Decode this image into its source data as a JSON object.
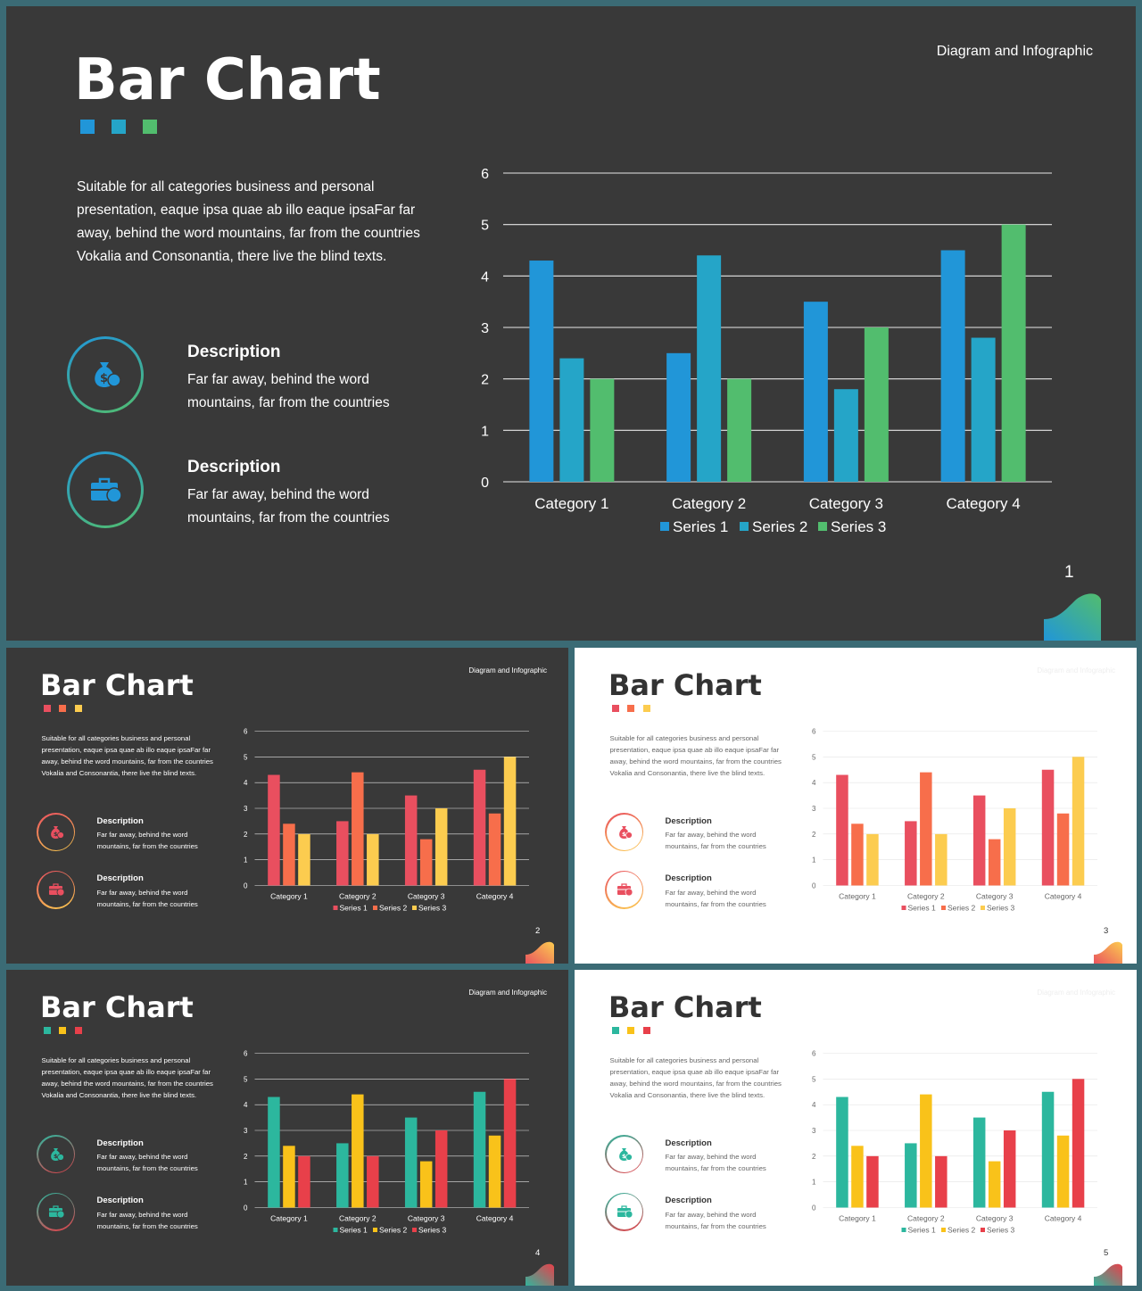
{
  "slides": [
    {
      "page_number": "1",
      "title": "Bar Chart",
      "tag": "Diagram and Infographic",
      "theme": "dark",
      "body": "Suitable for all categories business and personal presentation, eaque ipsa quae ab illo eaque ipsaFar far away, behind the word mountains, far from the countries Vokalia and Consonantia, there live the blind texts.",
      "descriptions": [
        {
          "heading": "Description",
          "text": "Far far away, behind the word mountains, far from the countries",
          "icon": "money-bag-icon"
        },
        {
          "heading": "Description",
          "text": "Far far away, behind the word mountains, far from the countries",
          "icon": "briefcase-money-icon"
        }
      ],
      "colors": [
        "#2196d8",
        "#25a5c8",
        "#52bd6e"
      ]
    },
    {
      "page_number": "2",
      "title": "Bar Chart",
      "tag": "Diagram and Infographic",
      "theme": "dark",
      "body": "Suitable for all categories business and personal presentation, eaque ipsa quae ab illo eaque ipsaFar far away, behind the word mountains, far from the countries Vokalia and Consonantia, there live the blind texts.",
      "descriptions": [
        {
          "heading": "Description",
          "text": "Far far away, behind the word mountains, far from the countries",
          "icon": "money-bag-icon"
        },
        {
          "heading": "Description",
          "text": "Far far away, behind the word mountains, far from the countries",
          "icon": "briefcase-money-icon"
        }
      ],
      "colors": [
        "#e94f5f",
        "#f76e4b",
        "#fccc4f"
      ]
    },
    {
      "page_number": "3",
      "title": "Bar Chart",
      "tag": "Diagram and Infographic",
      "theme": "light",
      "body": "Suitable for all categories business and personal presentation, eaque ipsa quae ab illo eaque ipsaFar far away, behind the word mountains, far from the countries Vokalia and Consonantia, there live the blind texts.",
      "descriptions": [
        {
          "heading": "Description",
          "text": "Far far away, behind the word mountains, far from the countries",
          "icon": "money-bag-icon"
        },
        {
          "heading": "Description",
          "text": "Far far away, behind the word mountains, far from the countries",
          "icon": "briefcase-money-icon"
        }
      ],
      "colors": [
        "#e94f5f",
        "#f76e4b",
        "#fccc4f"
      ]
    },
    {
      "page_number": "4",
      "title": "Bar Chart",
      "tag": "Diagram and Infographic",
      "theme": "dark",
      "body": "Suitable for all categories business and personal presentation, eaque ipsa quae ab illo eaque ipsaFar far away, behind the word mountains, far from the countries Vokalia and Consonantia, there live the blind texts.",
      "descriptions": [
        {
          "heading": "Description",
          "text": "Far far away, behind the word mountains, far from the countries",
          "icon": "money-bag-icon"
        },
        {
          "heading": "Description",
          "text": "Far far away, behind the word mountains, far from the countries",
          "icon": "briefcase-money-icon"
        }
      ],
      "colors": [
        "#2cb79e",
        "#f9c21a",
        "#e8404a"
      ]
    },
    {
      "page_number": "5",
      "title": "Bar Chart",
      "tag": "Diagram and Infographic",
      "theme": "light",
      "body": "Suitable for all categories business and personal presentation, eaque ipsa quae ab illo eaque ipsaFar far away, behind the word mountains, far from the countries Vokalia and Consonantia, there live the blind texts.",
      "descriptions": [
        {
          "heading": "Description",
          "text": "Far far away, behind the word mountains, far from the countries",
          "icon": "money-bag-icon"
        },
        {
          "heading": "Description",
          "text": "Far far away, behind the word mountains, far from the countries",
          "icon": "briefcase-money-icon"
        }
      ],
      "colors": [
        "#2cb79e",
        "#f9c21a",
        "#e8404a"
      ]
    }
  ],
  "chart_data": {
    "type": "bar",
    "categories": [
      "Category 1",
      "Category 2",
      "Category 3",
      "Category 4"
    ],
    "series": [
      {
        "name": "Series 1",
        "values": [
          4.3,
          2.5,
          3.5,
          4.5
        ]
      },
      {
        "name": "Series 2",
        "values": [
          2.4,
          4.4,
          1.8,
          2.8
        ]
      },
      {
        "name": "Series 3",
        "values": [
          2,
          2,
          3,
          5
        ]
      }
    ],
    "ylim": [
      0,
      6
    ],
    "yticks": [
      "0",
      "1",
      "2",
      "3",
      "4",
      "5",
      "6"
    ],
    "grid": true,
    "legend": "bottom"
  }
}
